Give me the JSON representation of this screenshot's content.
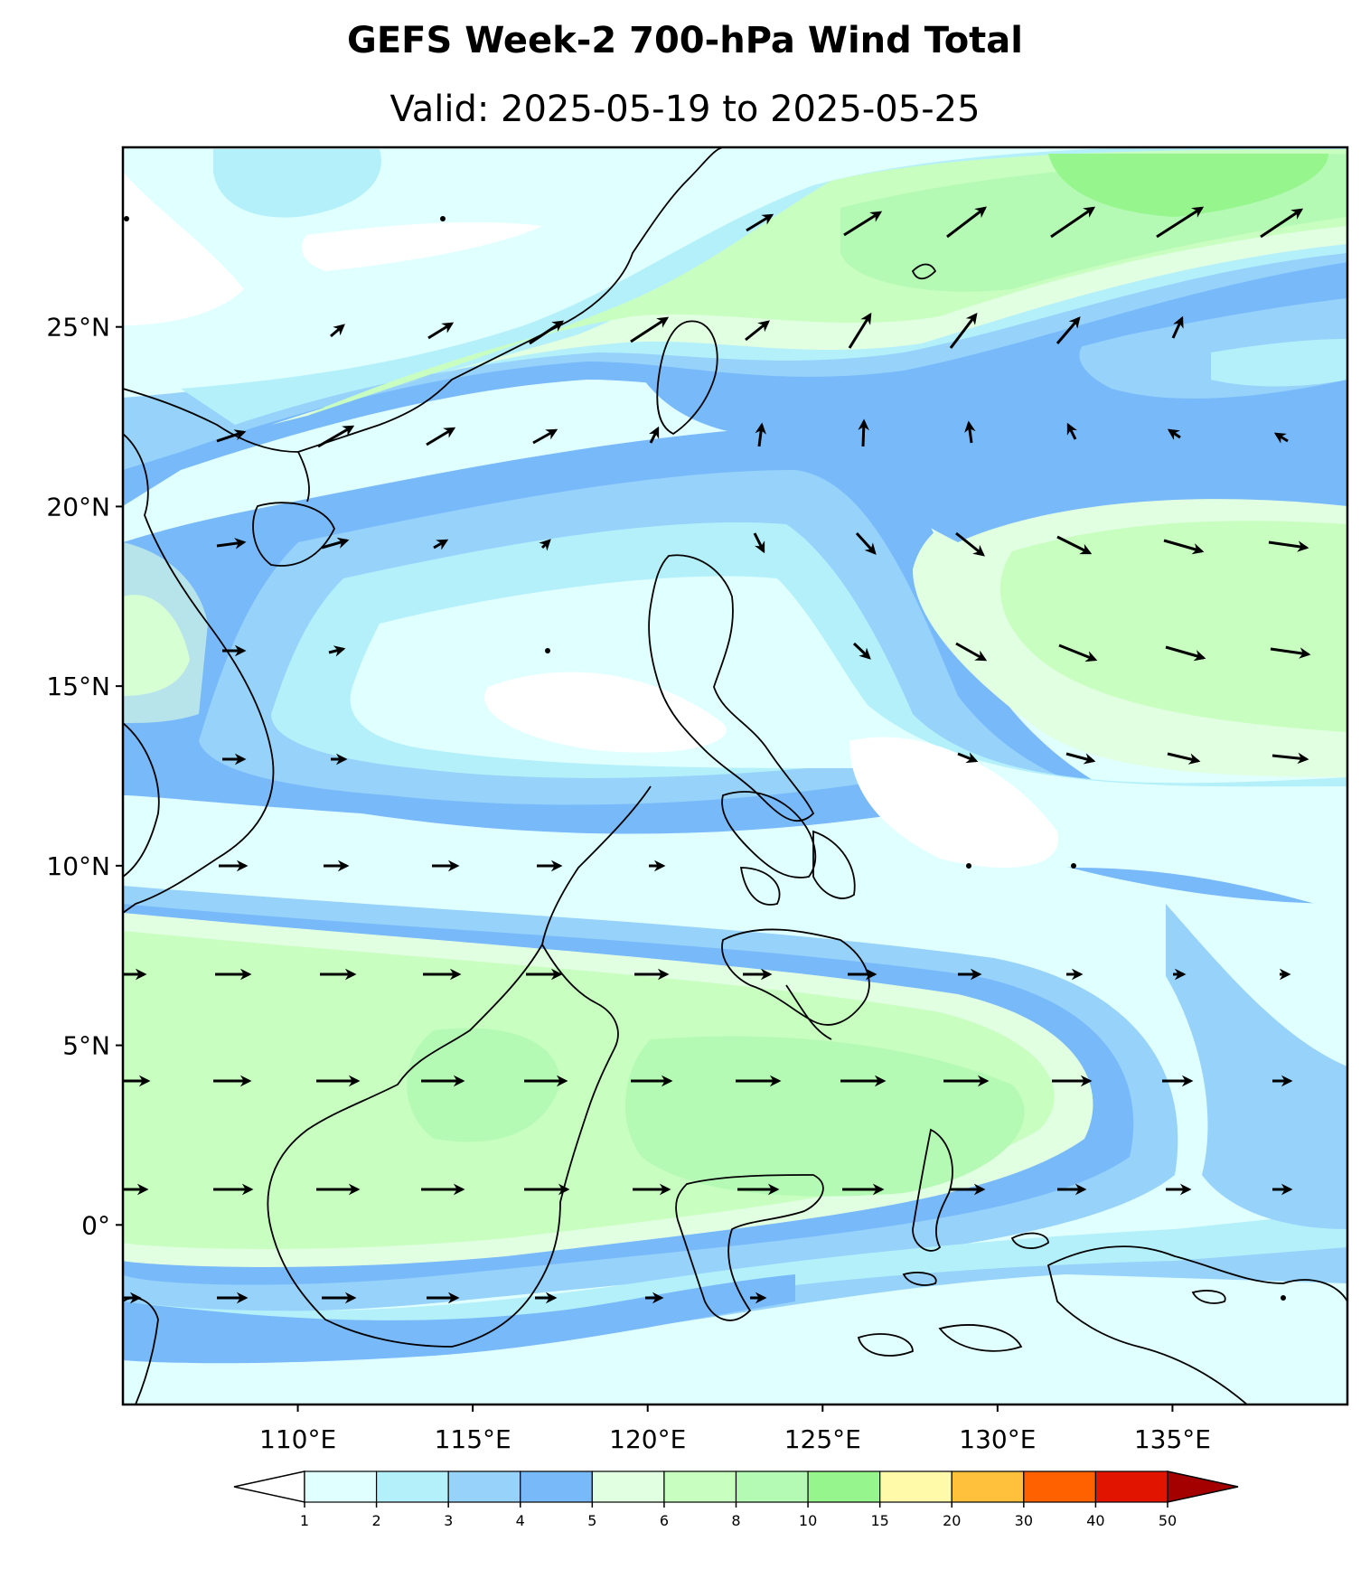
{
  "title": "GEFS Week-2 700-hPa Wind Total",
  "subtitle": "Valid: 2025-05-19 to 2025-05-25",
  "map": {
    "lon_range": [
      105,
      140
    ],
    "lat_range": [
      -5,
      30
    ],
    "lon_ticks": [
      {
        "value": 110,
        "label": "110°E"
      },
      {
        "value": 115,
        "label": "115°E"
      },
      {
        "value": 120,
        "label": "120°E"
      },
      {
        "value": 125,
        "label": "125°E"
      },
      {
        "value": 130,
        "label": "130°E"
      },
      {
        "value": 135,
        "label": "135°E"
      }
    ],
    "lat_ticks": [
      {
        "value": 25,
        "label": "25°N"
      },
      {
        "value": 20,
        "label": "20°N"
      },
      {
        "value": 15,
        "label": "15°N"
      },
      {
        "value": 10,
        "label": "10°N"
      },
      {
        "value": 5,
        "label": "5°N"
      },
      {
        "value": 0,
        "label": "0°"
      }
    ]
  },
  "colorbar": {
    "levels": [
      "1",
      "2",
      "3",
      "4",
      "5",
      "6",
      "8",
      "10",
      "15",
      "20",
      "30",
      "40",
      "50"
    ],
    "colors": [
      "#e0ffff",
      "#b4f0fa",
      "#96d2fa",
      "#78b9fa",
      "#e1ffe1",
      "#c8ffc0",
      "#b4fab4",
      "#96f58c",
      "#fffaaa",
      "#ffc03c",
      "#ff6000",
      "#e11400",
      "#a50000"
    ],
    "under_color": "#ffffff",
    "over_color": "#a50000"
  }
}
